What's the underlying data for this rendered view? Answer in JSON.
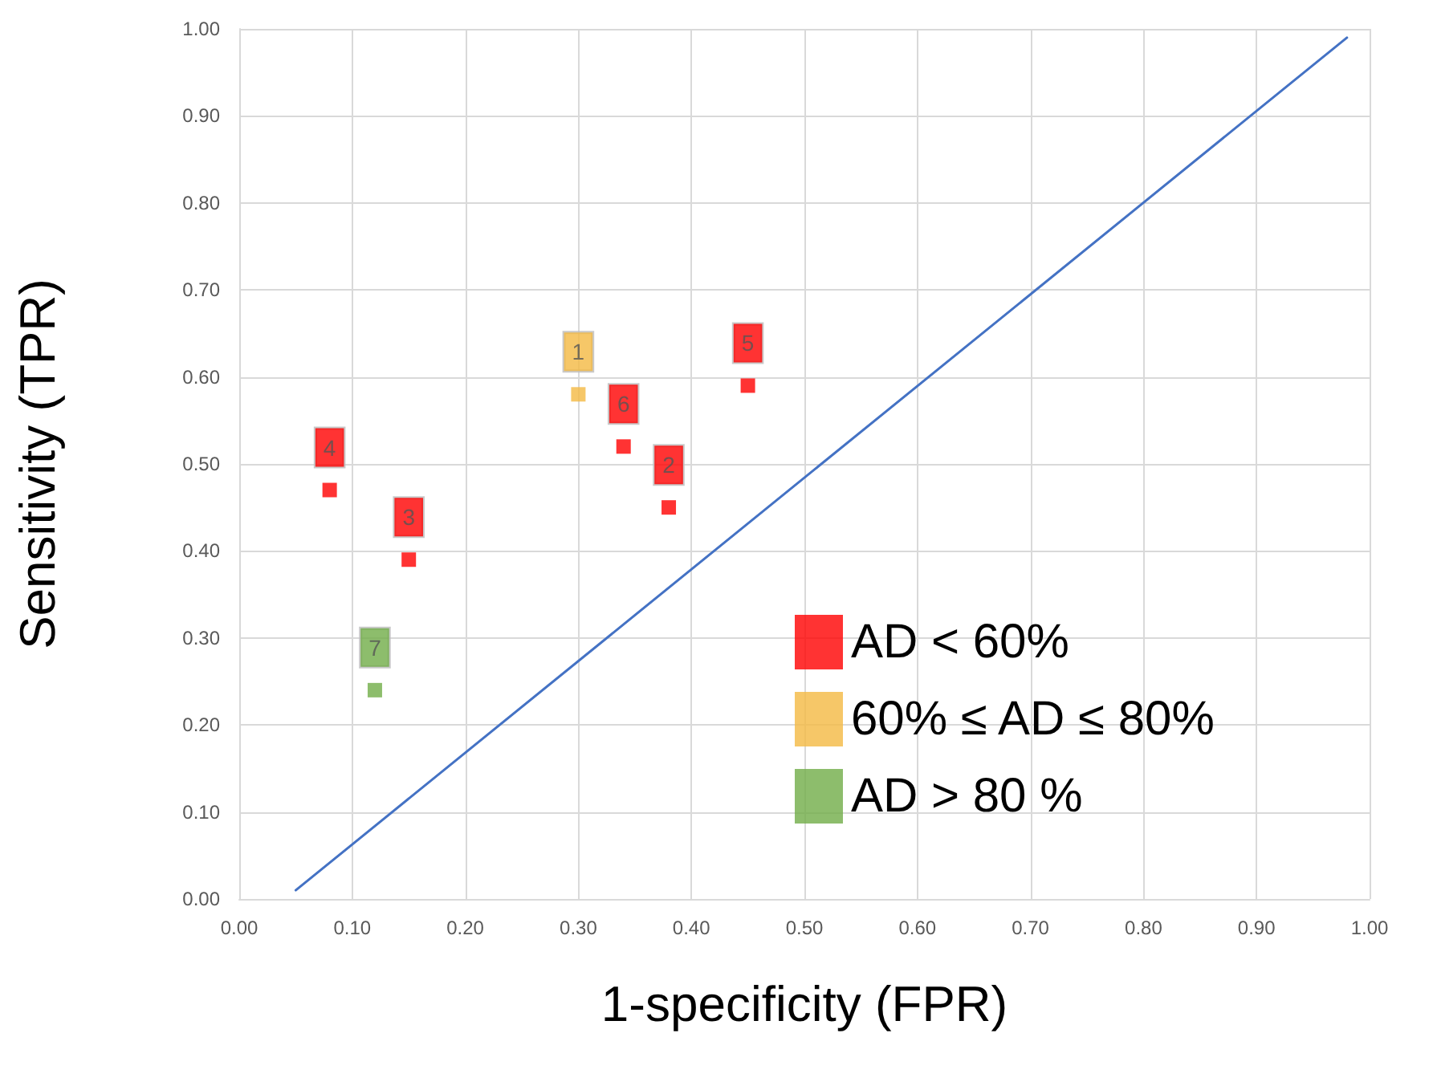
{
  "chart_data": {
    "type": "scatter",
    "xlabel": "1-specificity (FPR)",
    "ylabel": "Sensitivity (TPR)",
    "xlim": [
      0,
      1
    ],
    "ylim": [
      0,
      1
    ],
    "xticks": [
      {
        "value": 0,
        "label": "0.00"
      },
      {
        "value": 0.1,
        "label": "0.10"
      },
      {
        "value": 0.2,
        "label": "0.20"
      },
      {
        "value": 0.3,
        "label": "0.30"
      },
      {
        "value": 0.4,
        "label": "0.40"
      },
      {
        "value": 0.5,
        "label": "0.50"
      },
      {
        "value": 0.6,
        "label": "0.60"
      },
      {
        "value": 0.7,
        "label": "0.70"
      },
      {
        "value": 0.8,
        "label": "0.80"
      },
      {
        "value": 0.9,
        "label": "0.90"
      },
      {
        "value": 1,
        "label": "1.00"
      }
    ],
    "yticks": [
      {
        "value": 0,
        "label": "0.00"
      },
      {
        "value": 0.1,
        "label": "0.10"
      },
      {
        "value": 0.2,
        "label": "0.20"
      },
      {
        "value": 0.3,
        "label": "0.30"
      },
      {
        "value": 0.4,
        "label": "0.40"
      },
      {
        "value": 0.5,
        "label": "0.50"
      },
      {
        "value": 0.6,
        "label": "0.60"
      },
      {
        "value": 0.7,
        "label": "0.70"
      },
      {
        "value": 0.8,
        "label": "0.80"
      },
      {
        "value": 0.9,
        "label": "0.90"
      },
      {
        "value": 1,
        "label": "1.00"
      }
    ],
    "grid": true,
    "legend": "bottom right",
    "marker": "square",
    "annotations": [
      {
        "text": "4",
        "x": 0.08,
        "y": 0.47
      },
      {
        "text": "3",
        "x": 0.15,
        "y": 0.39
      },
      {
        "text": "6",
        "x": 0.34,
        "y": 0.52
      },
      {
        "text": "2",
        "x": 0.38,
        "y": 0.45
      },
      {
        "text": "5",
        "x": 0.45,
        "y": 0.59
      },
      {
        "text": "1",
        "x": 0.3,
        "y": 0.58
      },
      {
        "text": "7",
        "x": 0.12,
        "y": 0.24
      }
    ],
    "series": [
      {
        "name": "AD < 60%",
        "color": "#ff0000",
        "x": [
          0.08,
          0.15,
          0.34,
          0.38,
          0.45
        ],
        "values": [
          0.47,
          0.39,
          0.52,
          0.45,
          0.59
        ]
      },
      {
        "name": "60% ≤ AD ≤ 80%",
        "color": "#f4b942",
        "x": [
          0.3
        ],
        "values": [
          0.58
        ]
      },
      {
        "name": "AD > 80 %",
        "color": "#70ad47",
        "x": [
          0.12
        ],
        "values": [
          0.24
        ]
      },
      {
        "type": "line",
        "marker": "none",
        "color": "#4472c4",
        "x": [
          0.05,
          0.98
        ],
        "values": [
          0.01,
          0.99
        ]
      }
    ]
  }
}
